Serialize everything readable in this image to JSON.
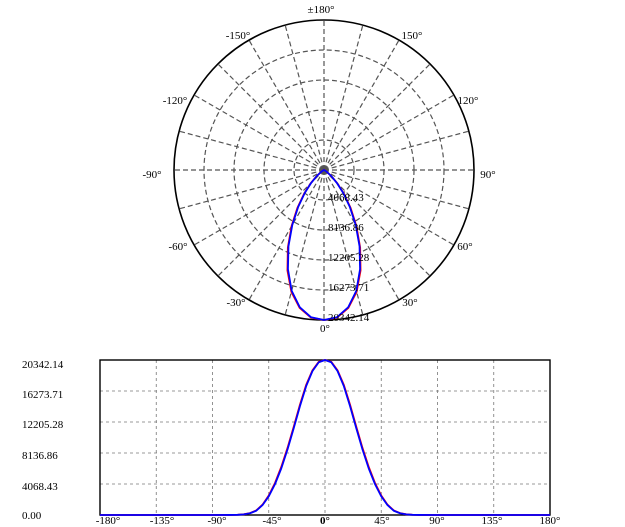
{
  "chart_data": [
    {
      "type": "polar",
      "angle_tick_labels": [
        "±180°",
        "-150°",
        "150°",
        "-120°",
        "120°",
        "-90°",
        "90°",
        "-60°",
        "60°",
        "-30°",
        "30°",
        "0°"
      ],
      "radial_tick_labels": [
        "4068.43",
        "8136.86",
        "12205.28",
        "16273.71",
        "20342.14"
      ],
      "rmax": 20342.14,
      "grid": true,
      "series": [
        {
          "color": "#ff0000",
          "angles": [
            0,
            5,
            10,
            15,
            20,
            25,
            30,
            35,
            40,
            45,
            50,
            55,
            60,
            65,
            70,
            75,
            80,
            85,
            90
          ],
          "values": [
            20342.14,
            20100,
            19000,
            17100,
            14500,
            11600,
            8800,
            6300,
            4200,
            2550,
            1350,
            600,
            250,
            90,
            30,
            10,
            0,
            0,
            0
          ]
        },
        {
          "color": "#0000ff",
          "angles": [
            0,
            5,
            10,
            15,
            20,
            25,
            30,
            35,
            40,
            45,
            50,
            55,
            60,
            65,
            70,
            75,
            80,
            85,
            90
          ],
          "values": [
            20342.14,
            20050,
            18900,
            16950,
            14300,
            11400,
            8600,
            6100,
            4050,
            2450,
            1300,
            560,
            230,
            80,
            25,
            8,
            0,
            0,
            0
          ]
        }
      ]
    },
    {
      "type": "line",
      "x_tick_labels": [
        "-180°",
        "-135°",
        "-90°",
        "-45°",
        "0°",
        "45°",
        "90°",
        "135°",
        "180°"
      ],
      "y_tick_labels": [
        "20342.14",
        "16273.71",
        "12205.28",
        "8136.86",
        "4068.43",
        "0.00"
      ],
      "xlim": [
        -180,
        180
      ],
      "ylim": [
        0,
        20342.14
      ],
      "grid": true,
      "series": [
        {
          "color": "#ff0000",
          "x": [
            -180,
            -90,
            -75,
            -70,
            -65,
            -60,
            -55,
            -50,
            -45,
            -40,
            -35,
            -30,
            -25,
            -20,
            -15,
            -10,
            -5,
            0,
            5,
            10,
            15,
            20,
            25,
            30,
            35,
            40,
            45,
            50,
            55,
            60,
            65,
            70,
            75,
            90,
            180
          ],
          "y": [
            0,
            0,
            10,
            30,
            90,
            250,
            600,
            1350,
            2550,
            4200,
            6300,
            8800,
            11600,
            14500,
            17100,
            19000,
            20100,
            20342.14,
            20100,
            19000,
            17100,
            14500,
            11600,
            8800,
            6300,
            4200,
            2550,
            1350,
            600,
            250,
            90,
            30,
            10,
            0,
            0
          ]
        },
        {
          "color": "#0000ff",
          "x": [
            -180,
            -90,
            -75,
            -70,
            -65,
            -60,
            -55,
            -50,
            -45,
            -40,
            -35,
            -30,
            -25,
            -20,
            -15,
            -10,
            -5,
            0,
            5,
            10,
            15,
            20,
            25,
            30,
            35,
            40,
            45,
            50,
            55,
            60,
            65,
            70,
            75,
            90,
            180
          ],
          "y": [
            0,
            0,
            8,
            25,
            80,
            230,
            560,
            1300,
            2450,
            4050,
            6100,
            8600,
            11400,
            14300,
            16950,
            18900,
            20050,
            20342.14,
            20050,
            18900,
            16950,
            14300,
            11400,
            8600,
            6100,
            4050,
            2450,
            1300,
            560,
            230,
            80,
            25,
            8,
            0,
            0
          ]
        }
      ]
    }
  ]
}
